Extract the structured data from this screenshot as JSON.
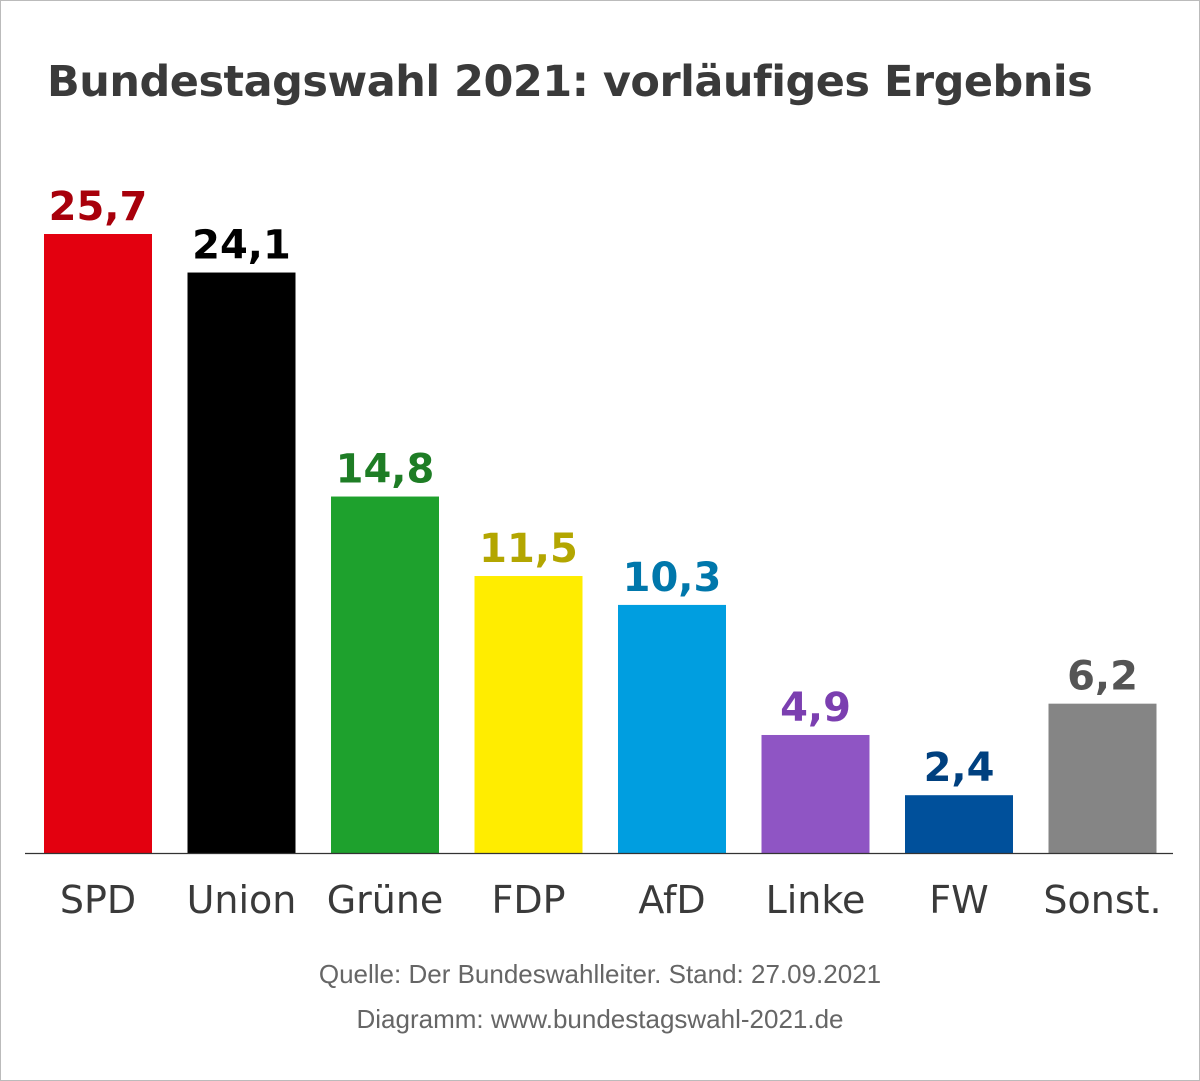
{
  "chart_data": {
    "type": "bar",
    "title": "Bundestagswahl 2021: vorläufiges Ergebnis",
    "categories": [
      "SPD",
      "Union",
      "Grüne",
      "FDP",
      "AfD",
      "Linke",
      "FW",
      "Sonst."
    ],
    "values": [
      25.7,
      24.1,
      14.8,
      11.5,
      10.3,
      4.9,
      2.4,
      6.2
    ],
    "data_labels": [
      "25,7",
      "24,1",
      "14,8",
      "11,5",
      "10,3",
      "4,9",
      "2,4",
      "6,2"
    ],
    "bar_colors": [
      "#e3000f",
      "#000000",
      "#1ea12d",
      "#ffed00",
      "#009ee0",
      "#8f55c4",
      "#00509b",
      "#858585"
    ],
    "label_colors": [
      "#a8000b",
      "#000000",
      "#1e7d25",
      "#b3a600",
      "#0077ab",
      "#7b3fb0",
      "#00407f",
      "#555555"
    ],
    "xlabel": "",
    "ylabel": "",
    "ylim": [
      0,
      25.7
    ],
    "grid": false,
    "legend": "none"
  },
  "footer": {
    "source": "Quelle: Der Bundeswahlleiter. Stand: 27.09.2021",
    "credit": "Diagramm: www.bundestagswahl-2021.de"
  }
}
